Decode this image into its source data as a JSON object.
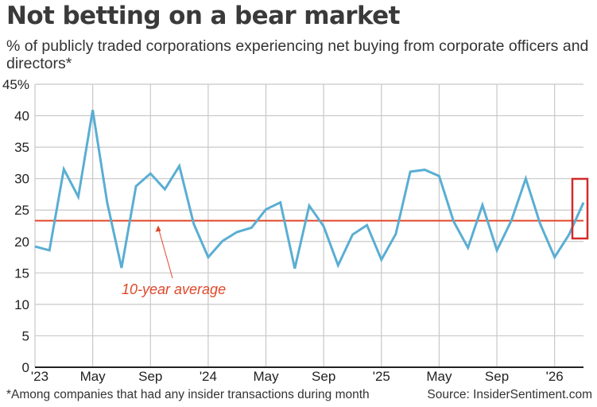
{
  "title": "Not betting on a bear market",
  "subtitle": "% of publicly traded corporations experiencing net buying from corporate officers and directors*",
  "footnote": "*Among companies that had any insider transactions during month",
  "source": "Source: InsiderSentiment.com",
  "colors": {
    "line": "#5aaed3",
    "average": "#e0472a",
    "highlight": "#d42a2a",
    "grid": "#c8c8c8",
    "axis": "#222222"
  },
  "chart_data": {
    "type": "line",
    "x_ticks": [
      {
        "month": 0,
        "label": "'23"
      },
      {
        "month": 4,
        "label": "May"
      },
      {
        "month": 8,
        "label": "Sep"
      },
      {
        "month": 12,
        "label": "'24"
      },
      {
        "month": 16,
        "label": "May"
      },
      {
        "month": 20,
        "label": "Sep"
      },
      {
        "month": 24,
        "label": "'25"
      },
      {
        "month": 28,
        "label": "May"
      },
      {
        "month": 32,
        "label": "Sep"
      },
      {
        "month": 36,
        "label": "'26"
      }
    ],
    "y_ticks": [
      "45%",
      "40",
      "35",
      "30",
      "25",
      "20",
      "15",
      "10",
      "5",
      "0"
    ],
    "ylim": [
      0,
      45
    ],
    "xlim": [
      0,
      38
    ],
    "grid": true,
    "series": [
      {
        "x": [
          0,
          1,
          2,
          3,
          4,
          5,
          6,
          7,
          8,
          9,
          10,
          11,
          12,
          13,
          14,
          15,
          16,
          17,
          18,
          19,
          20,
          21,
          22,
          23,
          24,
          25,
          26,
          27,
          28,
          29,
          30,
          31,
          32,
          33,
          34,
          35,
          36,
          37,
          38
        ],
        "values": [
          19.2,
          18.6,
          31.5,
          27.1,
          40.9,
          26.2,
          15.8,
          28.8,
          30.8,
          28.3,
          32.0,
          22.8,
          17.5,
          20.1,
          21.5,
          22.2,
          25.1,
          26.2,
          15.7,
          25.7,
          22.4,
          16.2,
          21.1,
          22.6,
          17.1,
          21.2,
          31.1,
          31.4,
          30.4,
          23.2,
          19.0,
          25.8,
          18.6,
          23.3,
          30.0,
          22.8,
          17.5,
          21.1,
          26.2
        ]
      }
    ],
    "reference_line": {
      "value": 23.3,
      "label": "10-year average"
    },
    "highlight_last_point": true
  }
}
